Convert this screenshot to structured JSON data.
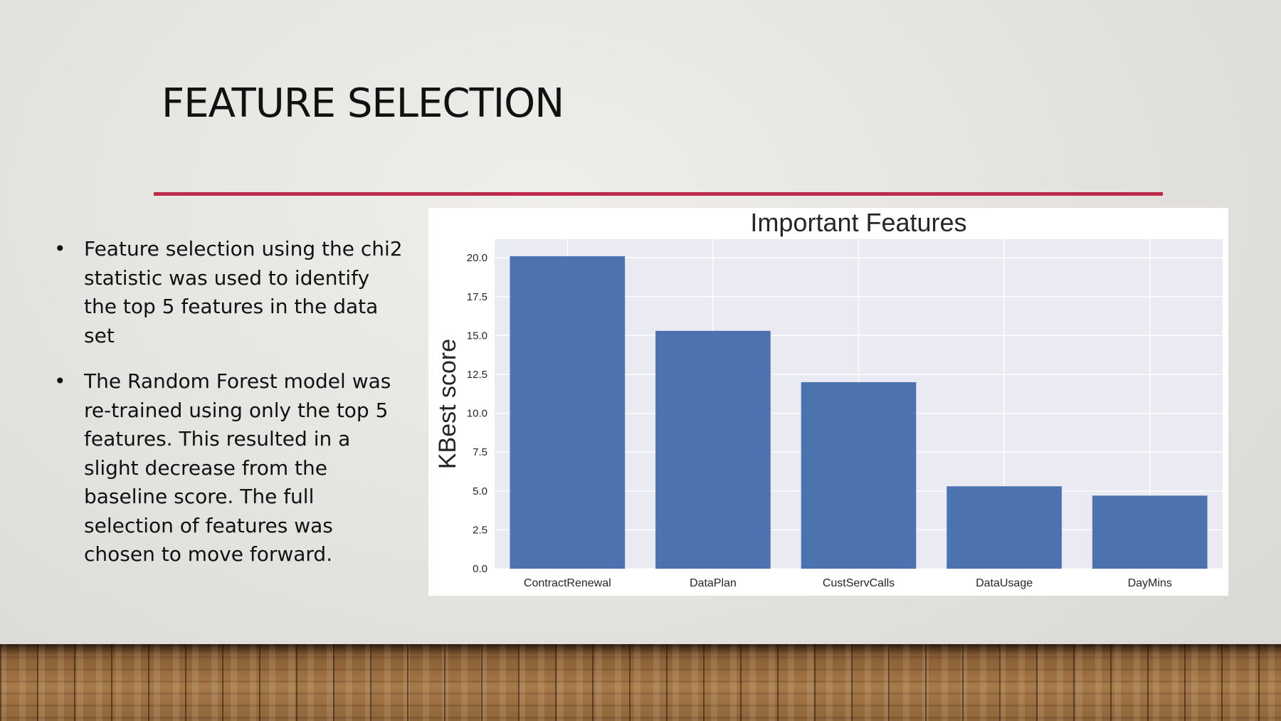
{
  "slide": {
    "title": "FEATURE SELECTION",
    "bullets": [
      "Feature selection using the chi2 statistic was used to identify the top 5 features in the data set",
      "The Random Forest model was re-trained using only the top 5 features. This resulted in a slight decrease from the baseline score. The full selection of features was chosen to move forward."
    ],
    "bullet_glyph": "•",
    "accent_color": "#c0284a"
  },
  "chart_data": {
    "type": "bar",
    "title": "Important Features",
    "xlabel": "",
    "ylabel": "KBest score",
    "categories": [
      "ContractRenewal",
      "DataPlan",
      "CustServCalls",
      "DataUsage",
      "DayMins"
    ],
    "values": [
      20.1,
      15.3,
      12.0,
      5.3,
      4.7
    ],
    "ylim": [
      0,
      21.2
    ],
    "yticks": [
      "0.0",
      "2.5",
      "5.0",
      "7.5",
      "10.0",
      "12.5",
      "15.0",
      "17.5",
      "20.0"
    ],
    "grid": true,
    "legend": "none",
    "bar_color": "#4c72b0",
    "plot_background": "#eaeaf2"
  }
}
